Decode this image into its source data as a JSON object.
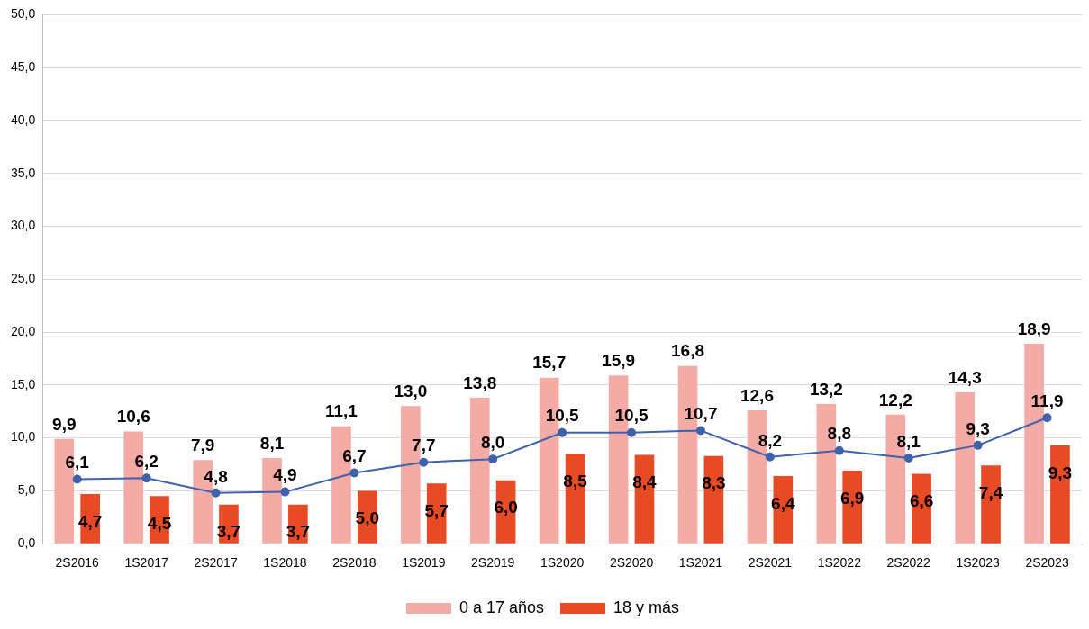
{
  "chart_data": {
    "type": "bar",
    "categories": [
      "2S2016",
      "1S2017",
      "2S2017",
      "1S2018",
      "2S2018",
      "1S2019",
      "2S2019",
      "1S2020",
      "2S2020",
      "1S2021",
      "2S2021",
      "1S2022",
      "2S2022",
      "1S2023",
      "2S2023"
    ],
    "series": [
      {
        "name": "0 a 17 años",
        "color": "#f4aaa5",
        "values": [
          9.9,
          10.6,
          7.9,
          8.1,
          11.1,
          13.0,
          13.8,
          15.7,
          15.9,
          16.8,
          12.6,
          13.2,
          12.2,
          14.3,
          18.9
        ],
        "value_labels": [
          "9,9",
          "10,6",
          "7,9",
          "8,1",
          "11,1",
          "13,0",
          "13,8",
          "15,7",
          "15,9",
          "16,8",
          "12,6",
          "13,2",
          "12,2",
          "14,3",
          "18,9"
        ]
      },
      {
        "name": "18 y más",
        "color": "#e84a24",
        "values": [
          4.7,
          4.5,
          3.7,
          3.7,
          5.0,
          5.7,
          6.0,
          8.5,
          8.4,
          8.3,
          6.4,
          6.9,
          6.6,
          7.4,
          9.3
        ],
        "value_labels": [
          "4,7",
          "4,5",
          "3,7",
          "3,7",
          "5,0",
          "5,7",
          "6,0",
          "8,5",
          "8,4",
          "8,3",
          "6,4",
          "6,9",
          "6,6",
          "7,4",
          "9,3"
        ]
      },
      {
        "type": "line",
        "color": "#3f62ad",
        "values": [
          6.1,
          6.2,
          4.8,
          4.9,
          6.7,
          7.7,
          8.0,
          10.5,
          10.5,
          10.7,
          8.2,
          8.8,
          8.1,
          9.3,
          11.9
        ],
        "value_labels": [
          "6,1",
          "6,2",
          "4,8",
          "4,9",
          "6,7",
          "7,7",
          "8,0",
          "10,5",
          "10,5",
          "10,7",
          "8,2",
          "8,8",
          "8,1",
          "9,3",
          "11,9"
        ]
      }
    ],
    "ylim": [
      0,
      50
    ],
    "yticks": [
      {
        "value": 0,
        "label": "0,0"
      },
      {
        "value": 5,
        "label": "5,0"
      },
      {
        "value": 10,
        "label": "10,0"
      },
      {
        "value": 15,
        "label": "15,0"
      },
      {
        "value": 20,
        "label": "20,0"
      },
      {
        "value": 25,
        "label": "25,0"
      },
      {
        "value": 30,
        "label": "30,0"
      },
      {
        "value": 35,
        "label": "35,0"
      },
      {
        "value": 40,
        "label": "40,0"
      },
      {
        "value": 45,
        "label": "45,0"
      },
      {
        "value": 50,
        "label": "50,0"
      }
    ],
    "grid": "y",
    "legend": "bottom",
    "marker": "circle",
    "line_style": "solid"
  }
}
